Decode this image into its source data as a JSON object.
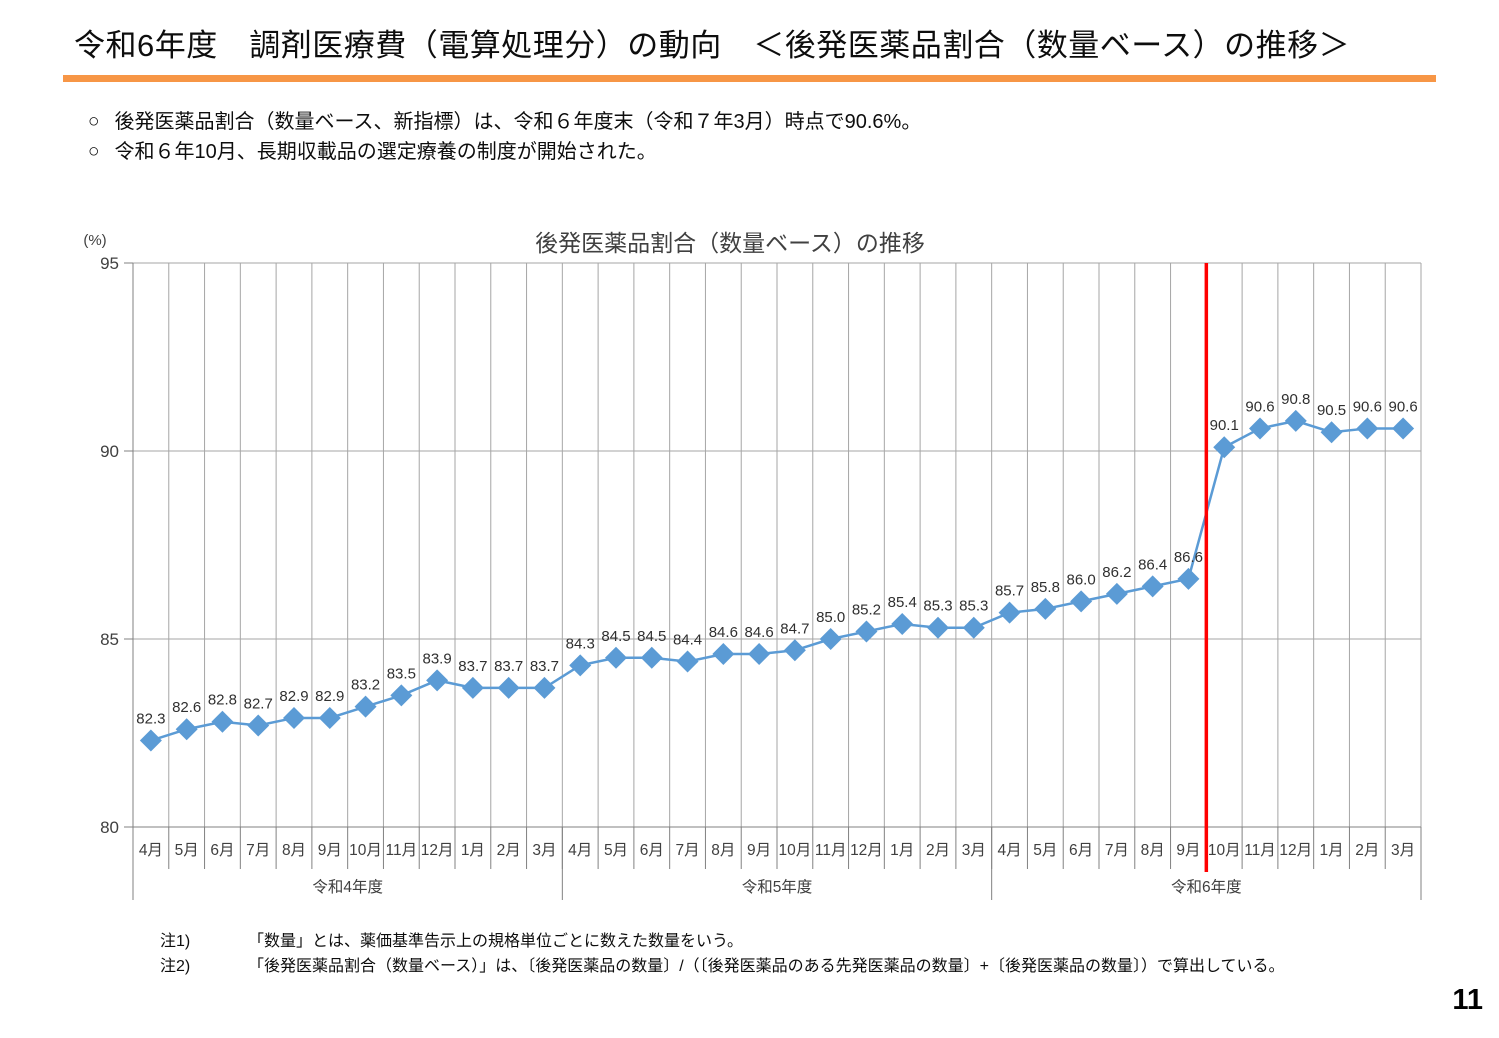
{
  "page": {
    "title": "令和6年度　調剤医療費（電算処理分）の動向　＜後発医薬品割合（数量ベース）の推移＞",
    "bullet_marker": "○",
    "page_number": "11",
    "accent_color": "#F79646"
  },
  "bullets": [
    "後発医薬品割合（数量ベース、新指標）は、令和６年度末（令和７年3月）時点で90.6%。",
    "令和６年10月、長期収載品の選定療養の制度が開始された。"
  ],
  "notes": [
    {
      "label": "注1)",
      "text": "「数量」とは、薬価基準告示上の規格単位ごとに数えた数量をいう。"
    },
    {
      "label": "注2)",
      "text": "「後発医薬品割合（数量ベース）」は、〔後発医薬品の数量〕/（〔後発医薬品のある先発医薬品の数量〕+〔後発医薬品の数量〕）で算出している。"
    }
  ],
  "chart_data": {
    "type": "line",
    "title": "後発医薬品割合（数量ベース）の推移",
    "unit_label": "(%)",
    "ylabel": "",
    "xlabel": "",
    "ylim": [
      80,
      95
    ],
    "yticks": [
      80,
      85,
      90,
      95
    ],
    "grid": true,
    "legend": "none",
    "categories": [
      "4月",
      "5月",
      "6月",
      "7月",
      "8月",
      "9月",
      "10月",
      "11月",
      "12月",
      "1月",
      "2月",
      "3月",
      "4月",
      "5月",
      "6月",
      "7月",
      "8月",
      "9月",
      "10月",
      "11月",
      "12月",
      "1月",
      "2月",
      "3月",
      "4月",
      "5月",
      "6月",
      "7月",
      "8月",
      "9月",
      "10月",
      "11月",
      "12月",
      "1月",
      "2月",
      "3月"
    ],
    "year_groups": [
      {
        "label": "令和4年度",
        "span": 12
      },
      {
        "label": "令和5年度",
        "span": 12
      },
      {
        "label": "令和6年度",
        "span": 12
      }
    ],
    "values": [
      82.3,
      82.6,
      82.8,
      82.7,
      82.9,
      82.9,
      83.2,
      83.5,
      83.9,
      83.7,
      83.7,
      83.7,
      84.3,
      84.5,
      84.5,
      84.4,
      84.6,
      84.6,
      84.7,
      85.0,
      85.2,
      85.4,
      85.3,
      85.3,
      85.7,
      85.8,
      86.0,
      86.2,
      86.4,
      86.6,
      90.1,
      90.6,
      90.8,
      90.5,
      90.6,
      90.6
    ],
    "marker_color": "#5B9BD5",
    "line_color": "#5B9BD5",
    "annotation_line": {
      "color": "#FF0000",
      "boundary_index": 30
    }
  }
}
